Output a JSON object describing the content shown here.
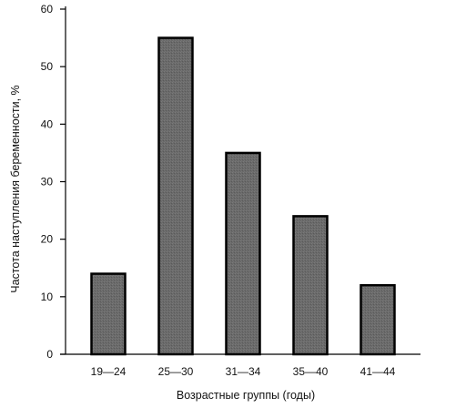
{
  "chart_data": {
    "type": "bar",
    "categories": [
      "19—24",
      "25—30",
      "31—34",
      "35—40",
      "41—44"
    ],
    "values": [
      14,
      55,
      35,
      24,
      12
    ],
    "xlabel": "Возрастные группы (годы)",
    "ylabel": "Частота наступления беременности, %",
    "ylim": [
      0,
      60
    ],
    "yticks": [
      0,
      10,
      20,
      30,
      40,
      50,
      60
    ],
    "grid": false,
    "colors": {
      "bar_fill": "#6e6e6e",
      "bar_stroke": "#000000",
      "axis": "#000000"
    }
  }
}
